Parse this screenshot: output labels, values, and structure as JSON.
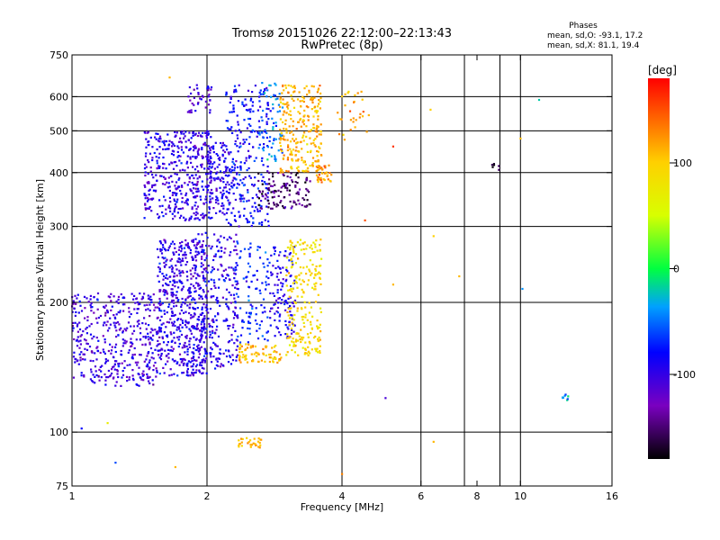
{
  "chart_data": {
    "type": "scatter",
    "title_line1": "Tromsø 20151026 22:12:00–22:13:43",
    "title_line2": "RwPretec (8p)",
    "stats": {
      "heading": "Phases",
      "line1": "mean, sd,O: -93.1, 17.2",
      "line2": "mean, sd,X:  81.1, 19.4"
    },
    "xlabel": "Frequency [MHz]",
    "ylabel": "Stationary phase Virtual Height [km]",
    "x_scale": "log",
    "y_scale": "log",
    "xlim": [
      1,
      16
    ],
    "ylim": [
      75,
      750
    ],
    "x_ticks": [
      1,
      2,
      4,
      6,
      8,
      10,
      16
    ],
    "x_tick_labels": [
      "1",
      "2",
      "4",
      "6",
      "8",
      "10",
      "16"
    ],
    "x_grid": [
      2,
      4,
      6,
      7.5,
      9,
      10
    ],
    "y_ticks": [
      75,
      100,
      200,
      300,
      400,
      500,
      600,
      750
    ],
    "y_tick_labels": [
      "75",
      "100",
      "200",
      "300",
      "400",
      "500",
      "600",
      "750"
    ],
    "y_grid": [
      100,
      200,
      300,
      400,
      500,
      600
    ],
    "grid": true,
    "colorbar": {
      "label": "[deg]",
      "min": -180,
      "max": 180,
      "ticks": [
        -100,
        0,
        100
      ],
      "tick_labels": [
        "-100",
        "0",
        "100"
      ]
    },
    "clusters": [
      {
        "f": [
          1.0,
          1.55
        ],
        "h": [
          128,
          210
        ],
        "phase": -105,
        "n": 420
      },
      {
        "f": [
          1.55,
          2.0
        ],
        "h": [
          135,
          280
        ],
        "phase": -100,
        "n": 520
      },
      {
        "f": [
          1.85,
          2.35
        ],
        "h": [
          140,
          290
        ],
        "phase": -95,
        "n": 300
      },
      {
        "f": [
          1.45,
          2.05
        ],
        "h": [
          310,
          500
        ],
        "phase": -100,
        "n": 420
      },
      {
        "f": [
          1.8,
          2.05
        ],
        "h": [
          550,
          640
        ],
        "phase": -110,
        "n": 40
      },
      {
        "f": [
          2.0,
          2.25
        ],
        "h": [
          320,
          470
        ],
        "phase": -95,
        "n": 120
      },
      {
        "f": [
          2.2,
          2.75
        ],
        "h": [
          300,
          640
        ],
        "phase": -85,
        "n": 260
      },
      {
        "f": [
          2.6,
          2.95
        ],
        "h": [
          420,
          650
        ],
        "phase": -50,
        "n": 70
      },
      {
        "f": [
          2.6,
          3.4
        ],
        "h": [
          330,
          400
        ],
        "phase": -150,
        "n": 120
      },
      {
        "f": [
          2.9,
          3.6
        ],
        "h": [
          400,
          640
        ],
        "phase": 110,
        "n": 260
      },
      {
        "f": [
          3.5,
          3.8
        ],
        "h": [
          380,
          420
        ],
        "phase": 120,
        "n": 40
      },
      {
        "f": [
          2.35,
          2.95
        ],
        "h": [
          145,
          160
        ],
        "phase": 105,
        "n": 80
      },
      {
        "f": [
          2.3,
          2.75
        ],
        "h": [
          160,
          280
        ],
        "phase": -70,
        "n": 100
      },
      {
        "f": [
          2.75,
          3.15
        ],
        "h": [
          165,
          270
        ],
        "phase": -90,
        "n": 120
      },
      {
        "f": [
          3.0,
          3.6
        ],
        "h": [
          150,
          280
        ],
        "phase": 90,
        "n": 220
      },
      {
        "f": [
          2.35,
          2.65
        ],
        "h": [
          92,
          97
        ],
        "phase": 110,
        "n": 30
      },
      {
        "f": [
          3.9,
          4.6
        ],
        "h": [
          470,
          620
        ],
        "phase": 120,
        "n": 30
      },
      {
        "f": [
          8.6,
          9.1
        ],
        "h": [
          405,
          420
        ],
        "phase": -165,
        "n": 6
      },
      {
        "f": [
          12.3,
          12.8
        ],
        "h": [
          117,
          123
        ],
        "phase": -40,
        "n": 8
      }
    ],
    "scatter": [
      {
        "f": 1.65,
        "h": 665,
        "phase": 110
      },
      {
        "f": 1.2,
        "h": 105,
        "phase": 70
      },
      {
        "f": 1.25,
        "h": 85,
        "phase": -60
      },
      {
        "f": 1.7,
        "h": 83,
        "phase": 110
      },
      {
        "f": 1.05,
        "h": 102,
        "phase": -80
      },
      {
        "f": 6.3,
        "h": 560,
        "phase": 100
      },
      {
        "f": 6.4,
        "h": 95,
        "phase": 110
      },
      {
        "f": 4.0,
        "h": 80,
        "phase": 130
      },
      {
        "f": 10.0,
        "h": 480,
        "phase": 110
      },
      {
        "f": 11.0,
        "h": 590,
        "phase": -20
      },
      {
        "f": 10.1,
        "h": 215,
        "phase": -40
      },
      {
        "f": 7.3,
        "h": 230,
        "phase": 110
      },
      {
        "f": 5.0,
        "h": 120,
        "phase": -110
      },
      {
        "f": 6.4,
        "h": 285,
        "phase": 100
      },
      {
        "f": 5.2,
        "h": 460,
        "phase": 160
      },
      {
        "f": 4.5,
        "h": 310,
        "phase": 150
      },
      {
        "f": 5.2,
        "h": 220,
        "phase": 110
      }
    ]
  }
}
